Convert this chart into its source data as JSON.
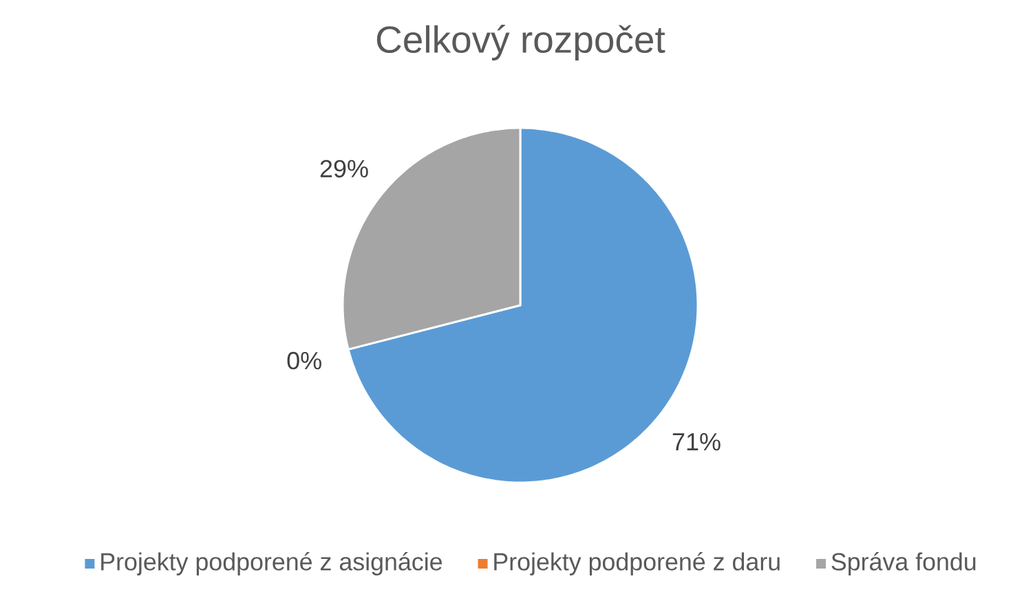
{
  "chart_data": {
    "type": "pie",
    "title": "Celkový rozpočet",
    "categories": [
      "Projekty podporené z asignácie",
      "Projekty podporené z daru",
      "Správa fondu"
    ],
    "values": [
      71,
      0,
      29
    ],
    "value_labels": [
      "71%",
      "0%",
      "29%"
    ],
    "colors": [
      "#5b9bd5",
      "#ed7d31",
      "#a5a5a5"
    ],
    "legend": "bottom"
  }
}
